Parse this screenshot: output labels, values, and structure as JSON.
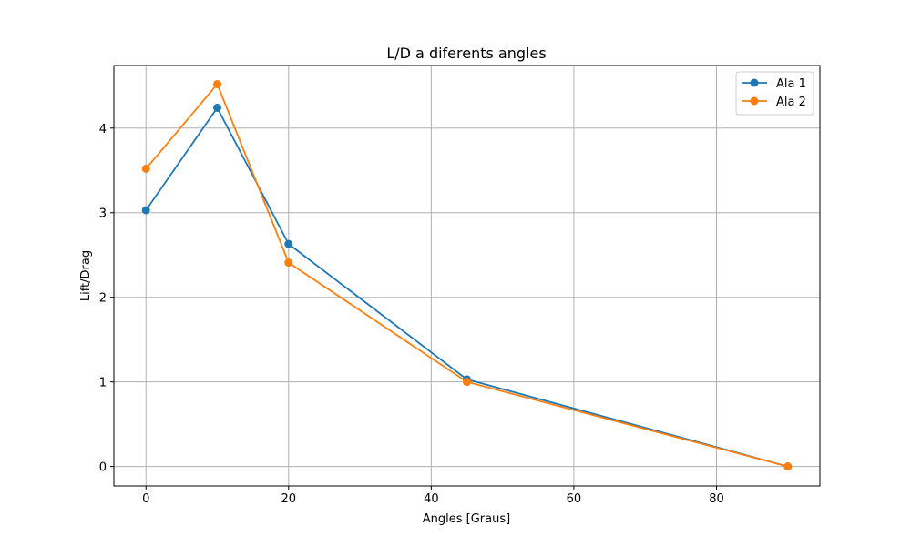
{
  "chart_data": {
    "type": "line",
    "title": "L/D a diferents angles",
    "xlabel": "Angles [Graus]",
    "ylabel": "Lift/Drag",
    "xlim": [
      -4.5,
      94.5
    ],
    "ylim": [
      -0.23,
      4.74
    ],
    "x_ticks": [
      0,
      20,
      40,
      60,
      80
    ],
    "x_tick_labels": [
      "0",
      "20",
      "40",
      "60",
      "80"
    ],
    "y_ticks": [
      0,
      1,
      2,
      3,
      4
    ],
    "y_tick_labels": [
      "0",
      "1",
      "2",
      "3",
      "4"
    ],
    "grid": true,
    "legend_position": "top-right",
    "series": [
      {
        "name": "Ala 1",
        "color": "#1f77b4",
        "marker": "circle",
        "x": [
          0,
          10,
          20,
          45,
          90
        ],
        "y": [
          3.03,
          4.24,
          2.63,
          1.03,
          0.0
        ]
      },
      {
        "name": "Ala 2",
        "color": "#ff7f0e",
        "marker": "circle",
        "x": [
          0,
          10,
          20,
          45,
          90
        ],
        "y": [
          3.52,
          4.52,
          2.41,
          1.0,
          0.0
        ]
      }
    ]
  }
}
